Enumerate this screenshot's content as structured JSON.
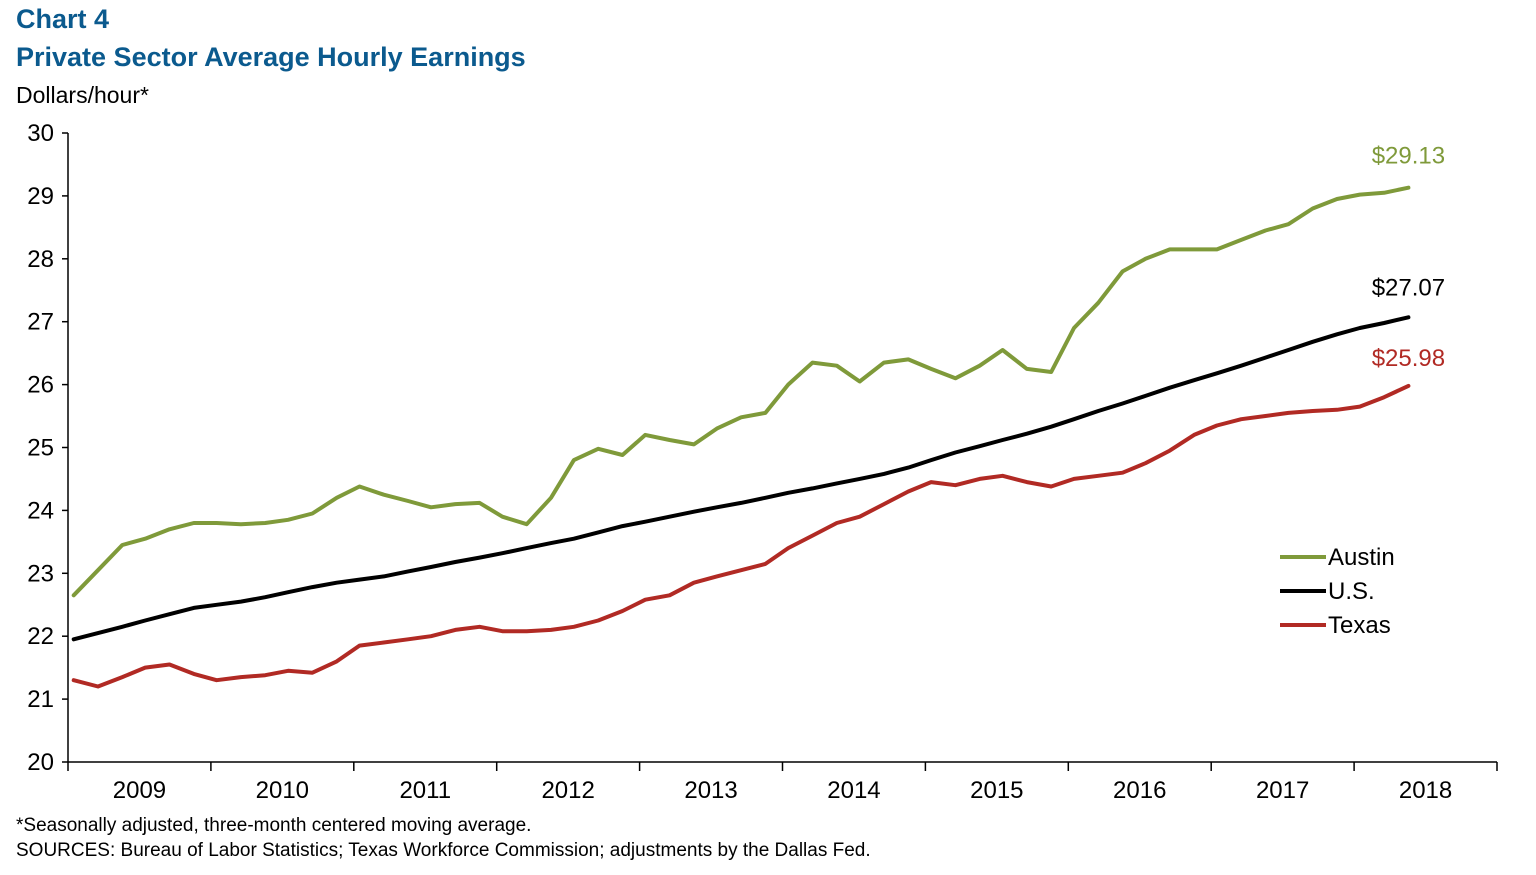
{
  "header": {
    "chart_number": "Chart 4",
    "title": "Private Sector Average Hourly Earnings",
    "unit_label": "Dollars/hour*"
  },
  "footer": {
    "note": "*Seasonally adjusted, three-month centered moving average.",
    "sources": "SOURCES: Bureau of Labor Statistics; Texas Workforce Commission; adjustments by the Dallas Fed."
  },
  "chart_data": {
    "type": "line",
    "title": "Private Sector Average Hourly Earnings",
    "ylabel": "Dollars/hour*",
    "xlabel": "",
    "ylim": [
      20,
      30
    ],
    "yticks": [
      20,
      21,
      22,
      23,
      24,
      25,
      26,
      27,
      28,
      29,
      30
    ],
    "xlim": [
      2009.0,
      2019.0
    ],
    "xtick_labels": [
      "2009",
      "2010",
      "2011",
      "2012",
      "2013",
      "2014",
      "2015",
      "2016",
      "2017",
      "2018"
    ],
    "grid": false,
    "legend_position": "right",
    "series": [
      {
        "name": "Austin",
        "color": "#7f9a3a",
        "end_label": "$29.13",
        "points": [
          [
            2009.04,
            22.65
          ],
          [
            2009.21,
            23.05
          ],
          [
            2009.38,
            23.45
          ],
          [
            2009.54,
            23.55
          ],
          [
            2009.71,
            23.7
          ],
          [
            2009.88,
            23.8
          ],
          [
            2010.04,
            23.8
          ],
          [
            2010.21,
            23.78
          ],
          [
            2010.38,
            23.8
          ],
          [
            2010.54,
            23.85
          ],
          [
            2010.71,
            23.95
          ],
          [
            2010.88,
            24.2
          ],
          [
            2011.04,
            24.38
          ],
          [
            2011.21,
            24.25
          ],
          [
            2011.38,
            24.15
          ],
          [
            2011.54,
            24.05
          ],
          [
            2011.71,
            24.1
          ],
          [
            2011.88,
            24.12
          ],
          [
            2012.04,
            23.9
          ],
          [
            2012.21,
            23.78
          ],
          [
            2012.38,
            24.2
          ],
          [
            2012.54,
            24.8
          ],
          [
            2012.71,
            24.98
          ],
          [
            2012.88,
            24.88
          ],
          [
            2013.04,
            25.2
          ],
          [
            2013.21,
            25.12
          ],
          [
            2013.38,
            25.05
          ],
          [
            2013.54,
            25.3
          ],
          [
            2013.71,
            25.48
          ],
          [
            2013.88,
            25.55
          ],
          [
            2014.04,
            26.0
          ],
          [
            2014.21,
            26.35
          ],
          [
            2014.38,
            26.3
          ],
          [
            2014.54,
            26.05
          ],
          [
            2014.71,
            26.35
          ],
          [
            2014.88,
            26.4
          ],
          [
            2015.04,
            26.25
          ],
          [
            2015.21,
            26.1
          ],
          [
            2015.38,
            26.3
          ],
          [
            2015.54,
            26.55
          ],
          [
            2015.71,
            26.25
          ],
          [
            2015.88,
            26.2
          ],
          [
            2016.04,
            26.9
          ],
          [
            2016.21,
            27.3
          ],
          [
            2016.38,
            27.8
          ],
          [
            2016.54,
            28.0
          ],
          [
            2016.71,
            28.15
          ],
          [
            2016.88,
            28.15
          ],
          [
            2017.04,
            28.15
          ],
          [
            2017.21,
            28.3
          ],
          [
            2017.38,
            28.45
          ],
          [
            2017.54,
            28.55
          ],
          [
            2017.71,
            28.8
          ],
          [
            2017.88,
            28.95
          ],
          [
            2018.04,
            29.02
          ],
          [
            2018.21,
            29.05
          ],
          [
            2018.38,
            29.13
          ]
        ]
      },
      {
        "name": "U.S.",
        "color": "#000000",
        "end_label": "$27.07",
        "points": [
          [
            2009.04,
            21.95
          ],
          [
            2009.21,
            22.05
          ],
          [
            2009.38,
            22.15
          ],
          [
            2009.54,
            22.25
          ],
          [
            2009.71,
            22.35
          ],
          [
            2009.88,
            22.45
          ],
          [
            2010.04,
            22.5
          ],
          [
            2010.21,
            22.55
          ],
          [
            2010.38,
            22.62
          ],
          [
            2010.54,
            22.7
          ],
          [
            2010.71,
            22.78
          ],
          [
            2010.88,
            22.85
          ],
          [
            2011.04,
            22.9
          ],
          [
            2011.21,
            22.95
          ],
          [
            2011.38,
            23.03
          ],
          [
            2011.54,
            23.1
          ],
          [
            2011.71,
            23.18
          ],
          [
            2011.88,
            23.25
          ],
          [
            2012.04,
            23.32
          ],
          [
            2012.21,
            23.4
          ],
          [
            2012.38,
            23.48
          ],
          [
            2012.54,
            23.55
          ],
          [
            2012.71,
            23.65
          ],
          [
            2012.88,
            23.75
          ],
          [
            2013.04,
            23.82
          ],
          [
            2013.21,
            23.9
          ],
          [
            2013.38,
            23.98
          ],
          [
            2013.54,
            24.05
          ],
          [
            2013.71,
            24.12
          ],
          [
            2013.88,
            24.2
          ],
          [
            2014.04,
            24.28
          ],
          [
            2014.21,
            24.35
          ],
          [
            2014.38,
            24.43
          ],
          [
            2014.54,
            24.5
          ],
          [
            2014.71,
            24.58
          ],
          [
            2014.88,
            24.68
          ],
          [
            2015.04,
            24.8
          ],
          [
            2015.21,
            24.92
          ],
          [
            2015.38,
            25.02
          ],
          [
            2015.54,
            25.12
          ],
          [
            2015.71,
            25.22
          ],
          [
            2015.88,
            25.33
          ],
          [
            2016.04,
            25.45
          ],
          [
            2016.21,
            25.58
          ],
          [
            2016.38,
            25.7
          ],
          [
            2016.54,
            25.82
          ],
          [
            2016.71,
            25.95
          ],
          [
            2016.88,
            26.07
          ],
          [
            2017.04,
            26.18
          ],
          [
            2017.21,
            26.3
          ],
          [
            2017.38,
            26.43
          ],
          [
            2017.54,
            26.55
          ],
          [
            2017.71,
            26.68
          ],
          [
            2017.88,
            26.8
          ],
          [
            2018.04,
            26.9
          ],
          [
            2018.21,
            26.98
          ],
          [
            2018.38,
            27.07
          ]
        ]
      },
      {
        "name": "Texas",
        "color": "#b12a24",
        "end_label": "$25.98",
        "points": [
          [
            2009.04,
            21.3
          ],
          [
            2009.21,
            21.2
          ],
          [
            2009.38,
            21.35
          ],
          [
            2009.54,
            21.5
          ],
          [
            2009.71,
            21.55
          ],
          [
            2009.88,
            21.4
          ],
          [
            2010.04,
            21.3
          ],
          [
            2010.21,
            21.35
          ],
          [
            2010.38,
            21.38
          ],
          [
            2010.54,
            21.45
          ],
          [
            2010.71,
            21.42
          ],
          [
            2010.88,
            21.6
          ],
          [
            2011.04,
            21.85
          ],
          [
            2011.21,
            21.9
          ],
          [
            2011.38,
            21.95
          ],
          [
            2011.54,
            22.0
          ],
          [
            2011.71,
            22.1
          ],
          [
            2011.88,
            22.15
          ],
          [
            2012.04,
            22.08
          ],
          [
            2012.21,
            22.08
          ],
          [
            2012.38,
            22.1
          ],
          [
            2012.54,
            22.15
          ],
          [
            2012.71,
            22.25
          ],
          [
            2012.88,
            22.4
          ],
          [
            2013.04,
            22.58
          ],
          [
            2013.21,
            22.65
          ],
          [
            2013.38,
            22.85
          ],
          [
            2013.54,
            22.95
          ],
          [
            2013.71,
            23.05
          ],
          [
            2013.88,
            23.15
          ],
          [
            2014.04,
            23.4
          ],
          [
            2014.21,
            23.6
          ],
          [
            2014.38,
            23.8
          ],
          [
            2014.54,
            23.9
          ],
          [
            2014.71,
            24.1
          ],
          [
            2014.88,
            24.3
          ],
          [
            2015.04,
            24.45
          ],
          [
            2015.21,
            24.4
          ],
          [
            2015.38,
            24.5
          ],
          [
            2015.54,
            24.55
          ],
          [
            2015.71,
            24.45
          ],
          [
            2015.88,
            24.38
          ],
          [
            2016.04,
            24.5
          ],
          [
            2016.21,
            24.55
          ],
          [
            2016.38,
            24.6
          ],
          [
            2016.54,
            24.75
          ],
          [
            2016.71,
            24.95
          ],
          [
            2016.88,
            25.2
          ],
          [
            2017.04,
            25.35
          ],
          [
            2017.21,
            25.45
          ],
          [
            2017.38,
            25.5
          ],
          [
            2017.54,
            25.55
          ],
          [
            2017.71,
            25.58
          ],
          [
            2017.88,
            25.6
          ],
          [
            2018.04,
            25.65
          ],
          [
            2018.21,
            25.8
          ],
          [
            2018.38,
            25.98
          ]
        ]
      }
    ]
  }
}
